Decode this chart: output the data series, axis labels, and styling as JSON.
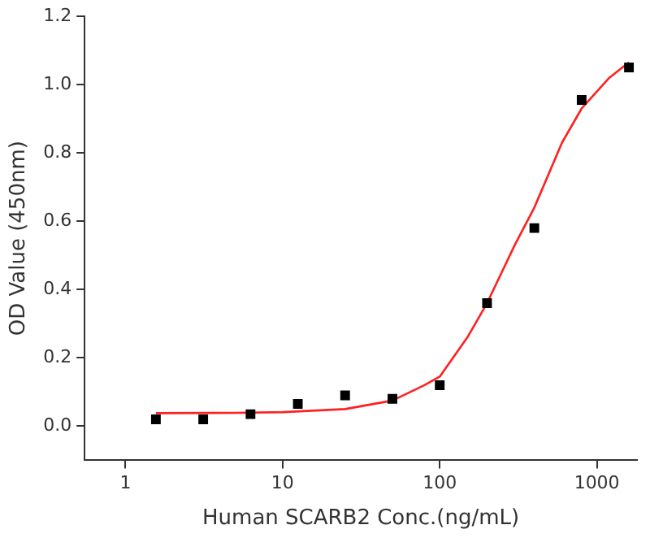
{
  "chart_data": {
    "type": "scatter",
    "xlabel": "Human SCARB2 Conc.(ng/mL)",
    "ylabel": "OD Value (450nm)",
    "log": "x",
    "xlim": [
      0.55,
      1800
    ],
    "xticks": [
      1,
      10,
      100,
      1000
    ],
    "ylim": [
      -0.1,
      1.2
    ],
    "yticks": [
      {
        "value": 0,
        "label": "0.0"
      },
      0.2,
      0.4,
      0.6,
      0.8,
      {
        "value": 1,
        "label": "1.0"
      },
      1.2
    ],
    "grid": false,
    "legend": false,
    "series": [
      {
        "type": "scatter",
        "marker": "square",
        "color": "#000000",
        "x": [
          1.5625,
          3.125,
          6.25,
          12.5,
          25,
          50,
          100,
          200,
          400,
          800,
          1600
        ],
        "values": [
          0.02,
          0.02,
          0.035,
          0.065,
          0.09,
          0.08,
          0.12,
          0.36,
          0.58,
          0.955,
          1.05
        ]
      },
      {
        "type": "line",
        "marker": "none",
        "line_style": "solid",
        "color": "#ff2020",
        "x": [
          1.5625,
          5,
          10,
          25,
          50,
          80,
          100,
          150,
          200,
          300,
          400,
          600,
          800,
          1200,
          1600
        ],
        "values": [
          0.038,
          0.039,
          0.041,
          0.05,
          0.075,
          0.12,
          0.145,
          0.26,
          0.36,
          0.53,
          0.64,
          0.83,
          0.93,
          1.02,
          1.065
        ]
      }
    ]
  }
}
